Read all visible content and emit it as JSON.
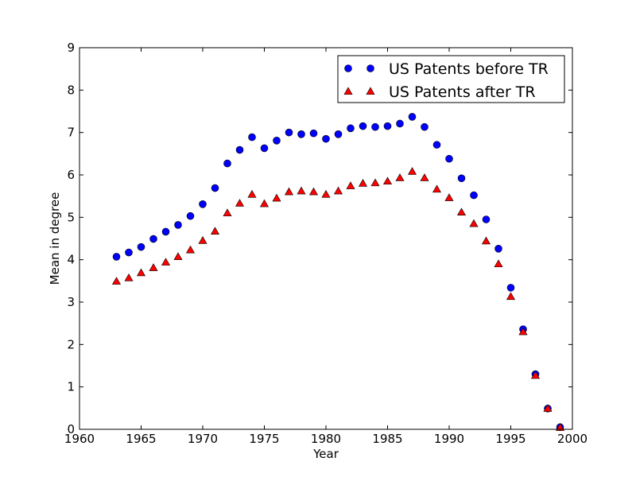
{
  "chart_data": {
    "type": "scatter",
    "title": "",
    "xlabel": "Year",
    "ylabel": "Mean in degree",
    "xlim": [
      1960,
      2000
    ],
    "ylim": [
      0,
      9
    ],
    "xticks": [
      1960,
      1965,
      1970,
      1975,
      1980,
      1985,
      1990,
      1995,
      2000
    ],
    "yticks": [
      0,
      1,
      2,
      3,
      4,
      5,
      6,
      7,
      8,
      9
    ],
    "grid": false,
    "legend_position": "top-right",
    "x": [
      1963,
      1964,
      1965,
      1966,
      1967,
      1968,
      1969,
      1970,
      1971,
      1972,
      1973,
      1974,
      1975,
      1976,
      1977,
      1978,
      1979,
      1980,
      1981,
      1982,
      1983,
      1984,
      1985,
      1986,
      1987,
      1988,
      1989,
      1990,
      1991,
      1992,
      1993,
      1994,
      1995,
      1996,
      1997,
      1998,
      1999
    ],
    "series": [
      {
        "name": "US Patents before TR",
        "marker": "circle",
        "color": "#0000ff",
        "values": [
          4.07,
          4.17,
          4.3,
          4.49,
          4.66,
          4.82,
          5.03,
          5.31,
          5.69,
          6.27,
          6.59,
          6.89,
          6.63,
          6.81,
          7.0,
          6.96,
          6.98,
          6.85,
          6.96,
          7.1,
          7.15,
          7.13,
          7.15,
          7.21,
          7.37,
          7.13,
          6.71,
          6.38,
          5.92,
          5.52,
          4.95,
          4.26,
          3.34,
          2.36,
          1.3,
          0.49,
          0.05
        ]
      },
      {
        "name": "US Patents after TR",
        "marker": "triangle",
        "color": "#ff0000",
        "values": [
          3.49,
          3.57,
          3.69,
          3.81,
          3.94,
          4.07,
          4.23,
          4.45,
          4.67,
          5.1,
          5.33,
          5.54,
          5.32,
          5.45,
          5.6,
          5.62,
          5.6,
          5.54,
          5.62,
          5.74,
          5.8,
          5.81,
          5.85,
          5.93,
          6.08,
          5.93,
          5.66,
          5.46,
          5.12,
          4.85,
          4.44,
          3.9,
          3.13,
          2.3,
          1.27,
          0.49,
          0.04
        ]
      }
    ]
  }
}
